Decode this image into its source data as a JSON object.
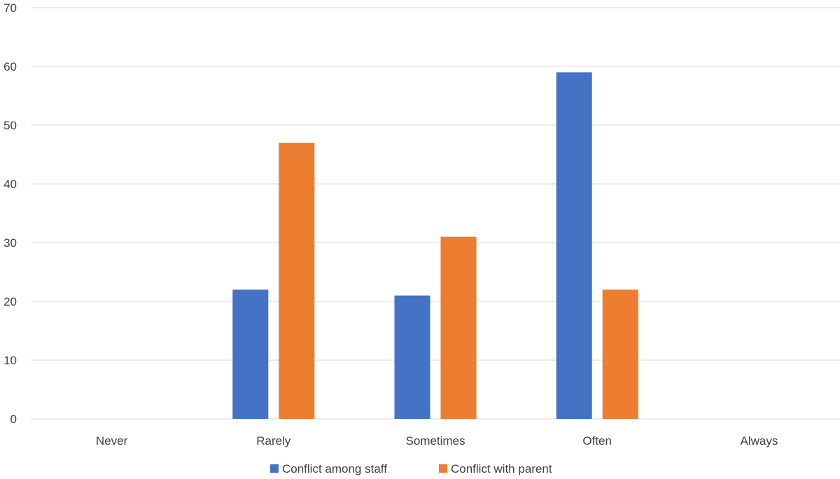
{
  "chart_data": {
    "type": "bar",
    "categories": [
      "Never",
      "Rarely",
      "Sometimes",
      "Often",
      "Always"
    ],
    "series": [
      {
        "name": "Conflict among staff",
        "values": [
          0,
          22,
          21,
          59,
          0
        ],
        "color": "#4472C4"
      },
      {
        "name": "Conflict with parent",
        "values": [
          0,
          47,
          31,
          22,
          0
        ],
        "color": "#ED7D31"
      }
    ],
    "ylim": [
      0,
      70
    ],
    "yticks": [
      0,
      10,
      20,
      30,
      40,
      50,
      60,
      70
    ],
    "grid": true,
    "legend_position": "bottom",
    "gridline_color": "#D9D9D9"
  }
}
